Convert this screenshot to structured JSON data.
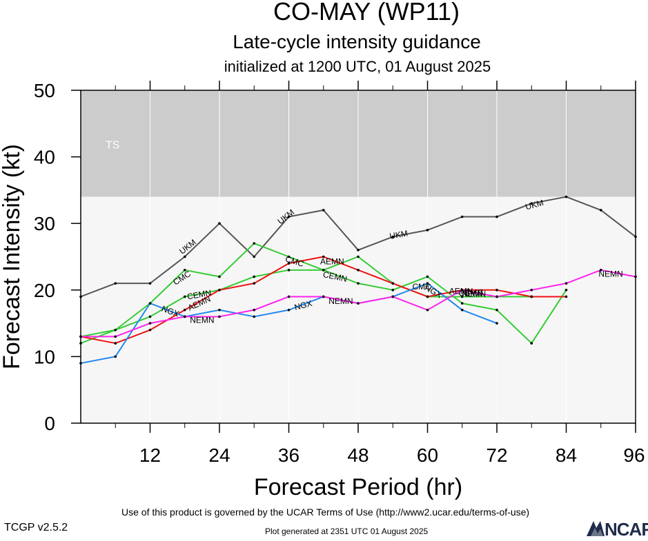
{
  "title": "CO-MAY (WP11)",
  "subtitle": "Late-cycle intensity guidance",
  "init_line": "initialized at 1200 UTC, 01 August 2025",
  "footer": {
    "terms": "Use of this product is governed by the UCAR Terms of Use (http://www2.ucar.edu/terms-of-use)",
    "version": "TCGP v2.5.2",
    "generated": "Plot generated at 2351 UTC   01 August 2025",
    "logo": "NCAR"
  },
  "chart_data": {
    "type": "line",
    "xlabel": "Forecast Period (hr)",
    "ylabel": "Forecast Intensity (kt)",
    "xlim": [
      0,
      96
    ],
    "ylim": [
      0,
      50
    ],
    "xticks": [
      12,
      24,
      36,
      48,
      60,
      72,
      84,
      96
    ],
    "yticks": [
      0,
      10,
      20,
      30,
      40,
      50
    ],
    "bands": [
      {
        "label": "TS",
        "y0": 34,
        "y1": 50,
        "color": "#cccccc"
      },
      {
        "label": "",
        "y0": 0,
        "y1": 34,
        "color": "#f6f6f6"
      }
    ],
    "series": [
      {
        "name": "UKM",
        "color": "#555555",
        "x": [
          0,
          6,
          12,
          18,
          24,
          30,
          36,
          42,
          48,
          54,
          60,
          66,
          72,
          78,
          84,
          90,
          96
        ],
        "y": [
          19,
          21,
          21,
          25,
          30,
          25,
          31,
          32,
          26,
          28,
          29,
          31,
          31,
          33,
          34,
          32,
          28
        ]
      },
      {
        "name": "CMC",
        "color": "#33cc33",
        "x": [
          0,
          6,
          12,
          18,
          24,
          30,
          36,
          42,
          48,
          54,
          60,
          66,
          72,
          78
        ],
        "y": [
          12,
          14,
          18,
          23,
          22,
          27,
          25,
          23,
          25,
          21,
          19,
          19,
          19,
          19
        ]
      },
      {
        "name": "CEMN",
        "color": "#33cc33",
        "x": [
          0,
          6,
          12,
          18,
          24,
          30,
          36,
          42,
          48,
          54,
          60,
          66,
          72,
          78,
          84
        ],
        "y": [
          13,
          14,
          16,
          19,
          20,
          22,
          23,
          23,
          21,
          20,
          22,
          18,
          17,
          12,
          20
        ]
      },
      {
        "name": "AEMN",
        "color": "#ee1111",
        "x": [
          0,
          6,
          12,
          18,
          24,
          30,
          36,
          42,
          48,
          54,
          60,
          66,
          72,
          78,
          84
        ],
        "y": [
          13,
          12,
          14,
          17,
          20,
          21,
          24,
          25,
          23,
          21,
          19,
          20,
          20,
          19,
          19
        ]
      },
      {
        "name": "NGX",
        "color": "#2288ee",
        "x": [
          0,
          6,
          12,
          18,
          24,
          30,
          36,
          42,
          48,
          54,
          60,
          66,
          72
        ],
        "y": [
          9,
          10,
          18,
          16,
          17,
          16,
          17,
          19,
          18,
          19,
          21,
          17,
          15
        ]
      },
      {
        "name": "NEMN",
        "color": "#ff22ee",
        "x": [
          0,
          6,
          12,
          18,
          24,
          30,
          36,
          42,
          48,
          54,
          60,
          66,
          72,
          78,
          84,
          90,
          96
        ],
        "y": [
          13,
          13,
          15,
          16,
          16,
          17,
          19,
          19,
          18,
          19,
          17,
          20,
          19,
          20,
          21,
          23,
          22
        ]
      }
    ],
    "line_labels": [
      {
        "text": "UKM",
        "x": 18.5,
        "y": 26.5,
        "angle": -38
      },
      {
        "text": "UKM",
        "x": 35.5,
        "y": 31,
        "angle": -38
      },
      {
        "text": "UKM",
        "x": 55,
        "y": 28.3,
        "angle": -10
      },
      {
        "text": "UKM",
        "x": 78.5,
        "y": 32.8,
        "angle": -15
      },
      {
        "text": "CMC",
        "x": 17.5,
        "y": 21.8,
        "angle": -32
      },
      {
        "text": "CMC",
        "x": 37,
        "y": 24.3,
        "angle": 18
      },
      {
        "text": "CMC",
        "x": 59,
        "y": 20.5,
        "angle": 0
      },
      {
        "text": "CEMN",
        "x": 20.5,
        "y": 19.3,
        "angle": -10
      },
      {
        "text": "CEMN",
        "x": 44,
        "y": 22,
        "angle": 12
      },
      {
        "text": "AEMN",
        "x": 20.5,
        "y": 18,
        "angle": -25
      },
      {
        "text": "AEMN",
        "x": 43.5,
        "y": 24.3,
        "angle": 0
      },
      {
        "text": "NGX",
        "x": 15.5,
        "y": 16.8,
        "angle": 20
      },
      {
        "text": "NGX",
        "x": 38.5,
        "y": 17.7,
        "angle": -15
      },
      {
        "text": "NGX",
        "x": 61,
        "y": 19.8,
        "angle": 30
      },
      {
        "text": "NEMN",
        "x": 21,
        "y": 15.5,
        "angle": 0
      },
      {
        "text": "NEMN",
        "x": 45,
        "y": 18.3,
        "angle": 0
      },
      {
        "text": "NEMN",
        "x": 91.7,
        "y": 22.4,
        "angle": 0
      },
      {
        "text": "AEMN",
        "x": 65.8,
        "y": 19.8,
        "angle": 0
      },
      {
        "text": "CEMN",
        "x": 67.5,
        "y": 19.5,
        "angle": 0
      },
      {
        "text": "NEMN",
        "x": 68,
        "y": 19.4,
        "angle": 0
      },
      {
        "text": "CMC",
        "x": 68,
        "y": 19.6,
        "angle": 0
      }
    ]
  }
}
